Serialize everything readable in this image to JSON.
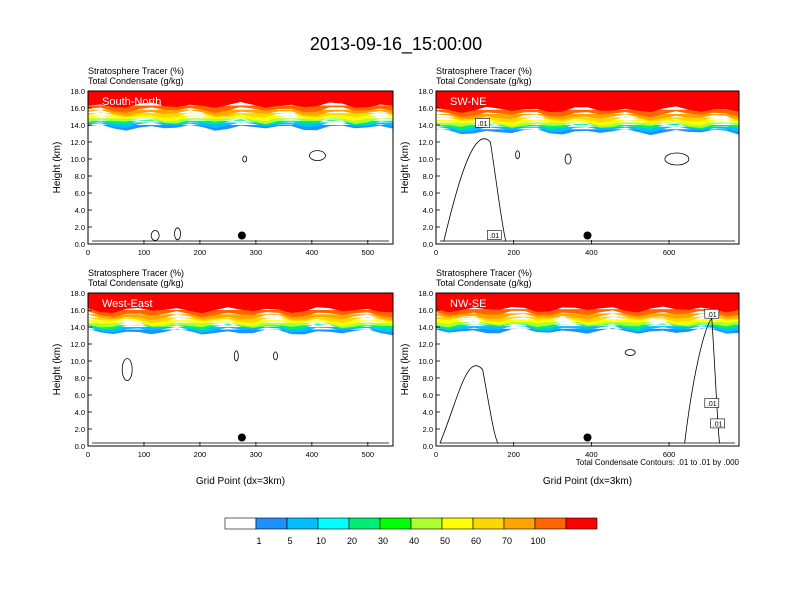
{
  "chart_data": {
    "type": "heatmap",
    "title": "2013-09-16_15:00:00",
    "panels": [
      {
        "name": "South-North",
        "left_label": "Stratosphere Tracer   (%)",
        "left_label2": "Total Condensate   (g/kg)",
        "ylabel": "Height (km)",
        "xlabel": "",
        "x_ticks": [
          "0",
          "100",
          "200",
          "300",
          "400",
          "500"
        ],
        "x_max": 545,
        "y_ticks": [
          "0.0",
          "2.0",
          "4.0",
          "6.0",
          "8.0",
          "10.0",
          "12.0",
          "14.0",
          "16.0",
          "18.0"
        ],
        "ylim": [
          0,
          18
        ],
        "tropopause_km": 14.5,
        "marker_x": 275,
        "contour_label": ""
      },
      {
        "name": "SW-NE",
        "left_label": "Stratosphere Tracer   (%)",
        "left_label2": "Total Condensate   (g/kg)",
        "ylabel": "Height (km)",
        "xlabel": "",
        "x_ticks": [
          "0",
          "200",
          "400",
          "600"
        ],
        "x_max": 780,
        "y_ticks": [
          "0.0",
          "2.0",
          "4.0",
          "6.0",
          "8.0",
          "10.0",
          "12.0",
          "14.0",
          "16.0",
          "18.0"
        ],
        "ylim": [
          0,
          18
        ],
        "tropopause_km": 14.0,
        "marker_x": 390,
        "contour_label": ".01"
      },
      {
        "name": "West-East",
        "left_label": "Stratosphere Tracer   (%)",
        "left_label2": "Total Condensate   (g/kg)",
        "ylabel": "Height (km)",
        "xlabel": "Grid Point (dx=3km)",
        "x_ticks": [
          "0",
          "100",
          "200",
          "300",
          "400",
          "500"
        ],
        "x_max": 545,
        "y_ticks": [
          "0.0",
          "2.0",
          "4.0",
          "6.0",
          "8.0",
          "10.0",
          "12.0",
          "14.0",
          "16.0",
          "18.0"
        ],
        "ylim": [
          0,
          18
        ],
        "tropopause_km": 14.2,
        "marker_x": 275,
        "contour_label": ""
      },
      {
        "name": "NW-SE",
        "left_label": "Stratosphere Tracer   (%)",
        "left_label2": "Total Condensate   (g/kg)",
        "ylabel": "Height (km)",
        "xlabel": "Grid Point (dx=3km)",
        "x_ticks": [
          "0",
          "200",
          "400",
          "600"
        ],
        "x_max": 780,
        "y_ticks": [
          "0.0",
          "2.0",
          "4.0",
          "6.0",
          "8.0",
          "10.0",
          "12.0",
          "14.0",
          "16.0",
          "18.0"
        ],
        "ylim": [
          0,
          18
        ],
        "tropopause_km": 14.3,
        "marker_x": 390,
        "contour_label": ".01"
      }
    ],
    "contour_info": "Total Condensate Contours: .01 to .01 by .000",
    "colorbar": {
      "labels": [
        "1",
        "5",
        "10",
        "20",
        "30",
        "40",
        "50",
        "60",
        "70",
        "100"
      ],
      "colors": [
        "#ffffff",
        "#1e90ff",
        "#00bfff",
        "#00ffff",
        "#00ee76",
        "#00ff00",
        "#adff2f",
        "#ffff00",
        "#ffd700",
        "#ffa500",
        "#ff6600",
        "#ff0000"
      ]
    }
  }
}
